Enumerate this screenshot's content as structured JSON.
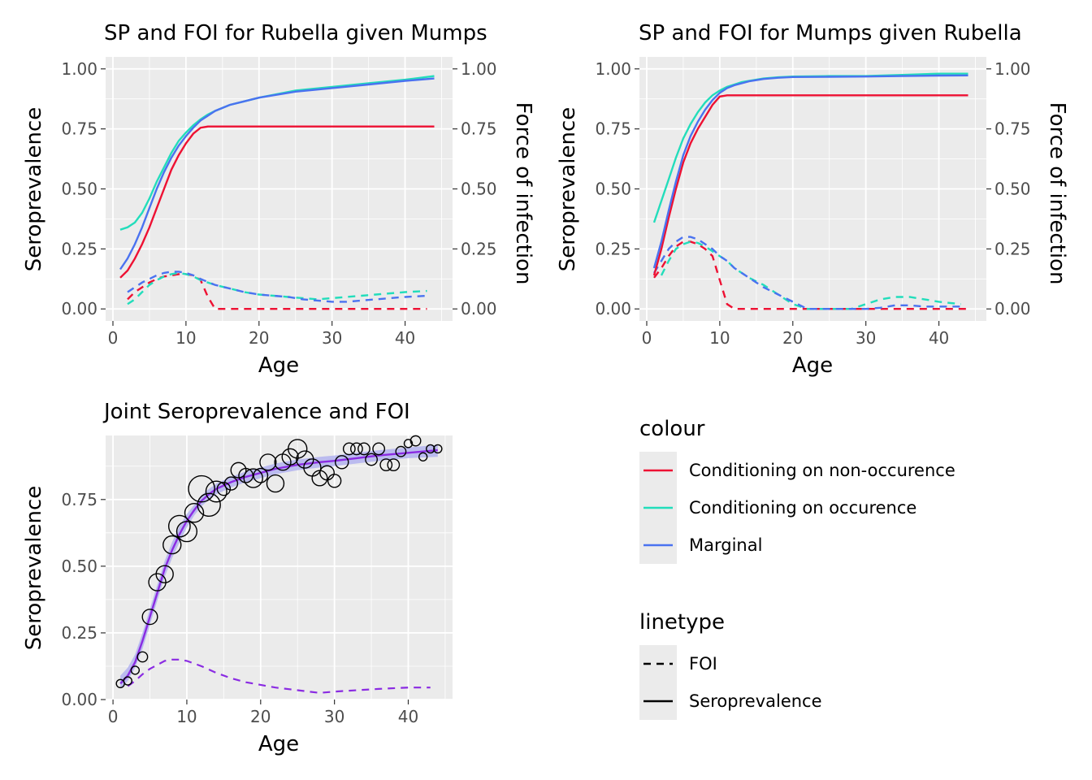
{
  "colors": {
    "non_occurrence": "#ee1133",
    "occurrence": "#22ddbb",
    "marginal": "#4a72f0",
    "joint_line": "#8a2be2",
    "joint_band": "#b3b3f0",
    "panel_bg": "#ebebeb",
    "grid": "#ffffff"
  },
  "chart_data": [
    {
      "id": "rubella",
      "type": "line",
      "title": "SP and FOI for Rubella given Mumps",
      "xlabel": "Age",
      "ylabel": "Seroprevalence",
      "y2label": "Force of infection",
      "xlim": [
        -1,
        46.5
      ],
      "ylim": [
        -0.05,
        1.05
      ],
      "xticks": [
        "0",
        "10",
        "20",
        "30",
        "40"
      ],
      "yticks": [
        "0.00",
        "0.25",
        "0.50",
        "0.75",
        "1.00"
      ],
      "series": [
        {
          "name": "Conditioning on non-occurence",
          "key": "non_occurrence",
          "linetype": "solid",
          "x": [
            1,
            2,
            3,
            4,
            5,
            6,
            7,
            8,
            9,
            10,
            11,
            12,
            13,
            14,
            16,
            20,
            30,
            44
          ],
          "y": [
            0.13,
            0.16,
            0.21,
            0.27,
            0.34,
            0.42,
            0.5,
            0.58,
            0.64,
            0.69,
            0.73,
            0.755,
            0.76,
            0.76,
            0.76,
            0.76,
            0.76,
            0.76
          ]
        },
        {
          "name": "Conditioning on occurence",
          "key": "occurrence",
          "linetype": "solid",
          "x": [
            1,
            2,
            3,
            4,
            5,
            6,
            7,
            8,
            9,
            10,
            11,
            12,
            13,
            14,
            16,
            18,
            20,
            25,
            30,
            35,
            40,
            44
          ],
          "y": [
            0.33,
            0.34,
            0.36,
            0.4,
            0.46,
            0.53,
            0.59,
            0.65,
            0.7,
            0.735,
            0.765,
            0.79,
            0.81,
            0.825,
            0.85,
            0.865,
            0.88,
            0.91,
            0.925,
            0.94,
            0.955,
            0.97
          ]
        },
        {
          "name": "Marginal",
          "key": "marginal",
          "linetype": "solid",
          "x": [
            1,
            2,
            3,
            4,
            5,
            6,
            7,
            8,
            9,
            10,
            11,
            12,
            13,
            14,
            16,
            18,
            20,
            25,
            30,
            35,
            40,
            44
          ],
          "y": [
            0.165,
            0.21,
            0.27,
            0.34,
            0.42,
            0.5,
            0.57,
            0.63,
            0.68,
            0.72,
            0.755,
            0.785,
            0.805,
            0.825,
            0.85,
            0.865,
            0.88,
            0.905,
            0.92,
            0.935,
            0.95,
            0.96
          ]
        },
        {
          "name": "Conditioning on non-occurence",
          "key": "non_occurrence",
          "linetype": "dashed",
          "x": [
            2,
            3,
            4,
            5,
            6,
            7,
            8,
            9,
            10,
            11,
            12,
            13,
            14,
            20,
            30,
            43
          ],
          "y": [
            0.04,
            0.07,
            0.09,
            0.11,
            0.125,
            0.135,
            0.14,
            0.145,
            0.145,
            0.14,
            0.12,
            0.05,
            0.0,
            0.0,
            0.0,
            0.0
          ]
        },
        {
          "name": "Conditioning on occurence",
          "key": "occurrence",
          "linetype": "dashed",
          "x": [
            2,
            3,
            4,
            5,
            6,
            7,
            8,
            9,
            10,
            11,
            12,
            14,
            16,
            18,
            20,
            22,
            24,
            26,
            28,
            30,
            32,
            34,
            36,
            38,
            40,
            43
          ],
          "y": [
            0.02,
            0.04,
            0.07,
            0.1,
            0.12,
            0.135,
            0.145,
            0.15,
            0.145,
            0.135,
            0.12,
            0.1,
            0.085,
            0.07,
            0.06,
            0.055,
            0.05,
            0.045,
            0.04,
            0.045,
            0.05,
            0.055,
            0.06,
            0.065,
            0.07,
            0.075
          ]
        },
        {
          "name": "Marginal",
          "key": "marginal",
          "linetype": "dashed",
          "x": [
            2,
            3,
            4,
            5,
            6,
            7,
            8,
            9,
            10,
            11,
            12,
            14,
            16,
            18,
            20,
            22,
            24,
            26,
            28,
            30,
            32,
            34,
            36,
            38,
            40,
            43
          ],
          "y": [
            0.07,
            0.09,
            0.11,
            0.125,
            0.14,
            0.15,
            0.155,
            0.155,
            0.15,
            0.14,
            0.125,
            0.1,
            0.085,
            0.07,
            0.06,
            0.055,
            0.05,
            0.04,
            0.035,
            0.03,
            0.03,
            0.035,
            0.04,
            0.045,
            0.05,
            0.055
          ]
        }
      ]
    },
    {
      "id": "mumps",
      "type": "line",
      "title": "SP and FOI for Mumps given Rubella",
      "xlabel": "Age",
      "ylabel": "Seroprevalence",
      "y2label": "Force of infection",
      "xlim": [
        -1,
        46.5
      ],
      "ylim": [
        -0.05,
        1.05
      ],
      "xticks": [
        "0",
        "10",
        "20",
        "30",
        "40"
      ],
      "yticks": [
        "0.00",
        "0.25",
        "0.50",
        "0.75",
        "1.00"
      ],
      "series": [
        {
          "name": "Conditioning on non-occurence",
          "key": "non_occurrence",
          "linetype": "solid",
          "x": [
            1,
            2,
            3,
            4,
            5,
            6,
            7,
            8,
            9,
            10,
            11,
            12,
            20,
            30,
            44
          ],
          "y": [
            0.14,
            0.25,
            0.38,
            0.5,
            0.61,
            0.69,
            0.75,
            0.8,
            0.85,
            0.885,
            0.89,
            0.89,
            0.89,
            0.89,
            0.89
          ]
        },
        {
          "name": "Conditioning on occurence",
          "key": "occurrence",
          "linetype": "solid",
          "x": [
            1,
            2,
            3,
            4,
            5,
            6,
            7,
            8,
            9,
            10,
            11,
            12,
            13,
            14,
            16,
            18,
            20,
            25,
            30,
            35,
            40,
            44
          ],
          "y": [
            0.36,
            0.45,
            0.54,
            0.63,
            0.71,
            0.77,
            0.82,
            0.86,
            0.89,
            0.91,
            0.925,
            0.935,
            0.945,
            0.95,
            0.96,
            0.965,
            0.968,
            0.97,
            0.97,
            0.975,
            0.98,
            0.98
          ]
        },
        {
          "name": "Marginal",
          "key": "marginal",
          "linetype": "solid",
          "x": [
            1,
            2,
            3,
            4,
            5,
            6,
            7,
            8,
            9,
            10,
            11,
            12,
            13,
            14,
            16,
            18,
            20,
            25,
            30,
            35,
            40,
            44
          ],
          "y": [
            0.17,
            0.28,
            0.41,
            0.53,
            0.64,
            0.72,
            0.78,
            0.83,
            0.87,
            0.9,
            0.92,
            0.932,
            0.94,
            0.948,
            0.958,
            0.963,
            0.966,
            0.967,
            0.968,
            0.97,
            0.972,
            0.973
          ]
        },
        {
          "name": "Conditioning on non-occurence",
          "key": "non_occurrence",
          "linetype": "dashed",
          "x": [
            1,
            2,
            3,
            4,
            5,
            6,
            7,
            8,
            9,
            10,
            11,
            12,
            14,
            20,
            30,
            44
          ],
          "y": [
            0.13,
            0.17,
            0.22,
            0.26,
            0.28,
            0.28,
            0.27,
            0.25,
            0.22,
            0.12,
            0.02,
            0.0,
            0.0,
            0.0,
            0.0,
            0.0
          ]
        },
        {
          "name": "Conditioning on occurence",
          "key": "occurrence",
          "linetype": "dashed",
          "x": [
            2,
            3,
            4,
            5,
            6,
            7,
            8,
            9,
            10,
            11,
            12,
            14,
            16,
            18,
            20,
            22,
            24,
            26,
            28,
            30,
            32,
            34,
            36,
            38,
            40,
            43
          ],
          "y": [
            0.14,
            0.2,
            0.25,
            0.27,
            0.28,
            0.275,
            0.26,
            0.24,
            0.22,
            0.2,
            0.17,
            0.13,
            0.1,
            0.06,
            0.02,
            0.0,
            0.0,
            0.0,
            0.0,
            0.02,
            0.04,
            0.05,
            0.05,
            0.04,
            0.03,
            0.02
          ]
        },
        {
          "name": "Marginal",
          "key": "marginal",
          "linetype": "dashed",
          "x": [
            1,
            2,
            3,
            4,
            5,
            6,
            7,
            8,
            9,
            10,
            11,
            12,
            14,
            16,
            18,
            20,
            22,
            24,
            26,
            28,
            30,
            32,
            34,
            36,
            38,
            40,
            43
          ],
          "y": [
            0.15,
            0.2,
            0.25,
            0.28,
            0.3,
            0.3,
            0.29,
            0.27,
            0.25,
            0.22,
            0.2,
            0.17,
            0.13,
            0.09,
            0.06,
            0.03,
            0.0,
            0.0,
            0.0,
            0.0,
            0.0,
            0.005,
            0.015,
            0.015,
            0.01,
            0.01,
            0.01
          ]
        }
      ]
    },
    {
      "id": "joint",
      "type": "line",
      "title": "Joint Seroprevalence and FOI",
      "xlabel": "Age",
      "ylabel": "Seroprevalence",
      "xlim": [
        -1,
        46
      ],
      "ylim": [
        0.0,
        0.99
      ],
      "xticks": [
        "0",
        "10",
        "20",
        "30",
        "40"
      ],
      "yticks": [
        "0.00",
        "0.25",
        "0.50",
        "0.75"
      ],
      "seroprevalence": {
        "x": [
          1,
          2,
          3,
          4,
          5,
          6,
          7,
          8,
          9,
          10,
          11,
          12,
          13,
          14,
          16,
          18,
          20,
          22,
          25,
          28,
          30,
          33,
          36,
          40,
          44
        ],
        "y": [
          0.06,
          0.09,
          0.14,
          0.22,
          0.31,
          0.4,
          0.49,
          0.56,
          0.62,
          0.67,
          0.71,
          0.745,
          0.77,
          0.79,
          0.815,
          0.835,
          0.85,
          0.865,
          0.88,
          0.89,
          0.895,
          0.905,
          0.915,
          0.925,
          0.935
        ]
      },
      "band": {
        "x": [
          1,
          2,
          3,
          4,
          5,
          6,
          7,
          8,
          9,
          10,
          11,
          12,
          13,
          14,
          16,
          18,
          20,
          22,
          25,
          28,
          30,
          33,
          36,
          40,
          44
        ],
        "lower": [
          0.04,
          0.07,
          0.12,
          0.19,
          0.28,
          0.37,
          0.46,
          0.53,
          0.59,
          0.645,
          0.69,
          0.725,
          0.75,
          0.77,
          0.795,
          0.815,
          0.83,
          0.845,
          0.86,
          0.87,
          0.875,
          0.885,
          0.895,
          0.905,
          0.91
        ],
        "upper": [
          0.09,
          0.12,
          0.17,
          0.25,
          0.34,
          0.43,
          0.52,
          0.59,
          0.65,
          0.695,
          0.73,
          0.765,
          0.79,
          0.81,
          0.835,
          0.855,
          0.87,
          0.885,
          0.9,
          0.91,
          0.915,
          0.925,
          0.935,
          0.945,
          0.955
        ]
      },
      "foi": {
        "x": [
          2,
          3,
          4,
          5,
          6,
          7,
          8,
          9,
          10,
          12,
          14,
          16,
          18,
          20,
          22,
          25,
          28,
          30,
          33,
          36,
          40,
          43
        ],
        "y": [
          0.05,
          0.07,
          0.095,
          0.115,
          0.13,
          0.145,
          0.15,
          0.15,
          0.145,
          0.125,
          0.1,
          0.08,
          0.065,
          0.055,
          0.045,
          0.035,
          0.025,
          0.03,
          0.035,
          0.04,
          0.045,
          0.045
        ]
      },
      "points": {
        "x": [
          1,
          2,
          3,
          4,
          5,
          6,
          7,
          8,
          9,
          10,
          11,
          12,
          13,
          14,
          15,
          16,
          17,
          18,
          19,
          20,
          21,
          22,
          23,
          24,
          25,
          26,
          27,
          28,
          29,
          30,
          31,
          32,
          33,
          34,
          35,
          36,
          37,
          38,
          39,
          40,
          41,
          42,
          43,
          44
        ],
        "y": [
          0.06,
          0.07,
          0.11,
          0.16,
          0.31,
          0.44,
          0.47,
          0.58,
          0.65,
          0.63,
          0.7,
          0.79,
          0.73,
          0.78,
          0.79,
          0.81,
          0.86,
          0.84,
          0.83,
          0.84,
          0.89,
          0.81,
          0.89,
          0.91,
          0.94,
          0.9,
          0.87,
          0.83,
          0.85,
          0.82,
          0.89,
          0.94,
          0.94,
          0.94,
          0.9,
          0.94,
          0.88,
          0.88,
          0.93,
          0.96,
          0.97,
          0.91,
          0.94,
          0.94
        ],
        "n": [
          1,
          1,
          1,
          2,
          6,
          8,
          8,
          9,
          14,
          12,
          10,
          22,
          16,
          13,
          4,
          4,
          6,
          5,
          10,
          5,
          7,
          8,
          7,
          7,
          10,
          8,
          8,
          6,
          5,
          4,
          4,
          3,
          3,
          3,
          3,
          3,
          3,
          3,
          2,
          1,
          2,
          1,
          1,
          1
        ]
      }
    }
  ],
  "legend": {
    "colour_title": "colour",
    "colour_items": [
      {
        "label": "Conditioning on non-occurence",
        "key": "non_occurrence"
      },
      {
        "label": "Conditioning on occurence",
        "key": "occurrence"
      },
      {
        "label": "Marginal",
        "key": "marginal"
      }
    ],
    "linetype_title": "linetype",
    "linetype_items": [
      {
        "label": "FOI",
        "style": "dashed"
      },
      {
        "label": "Seroprevalence",
        "style": "solid"
      }
    ]
  }
}
